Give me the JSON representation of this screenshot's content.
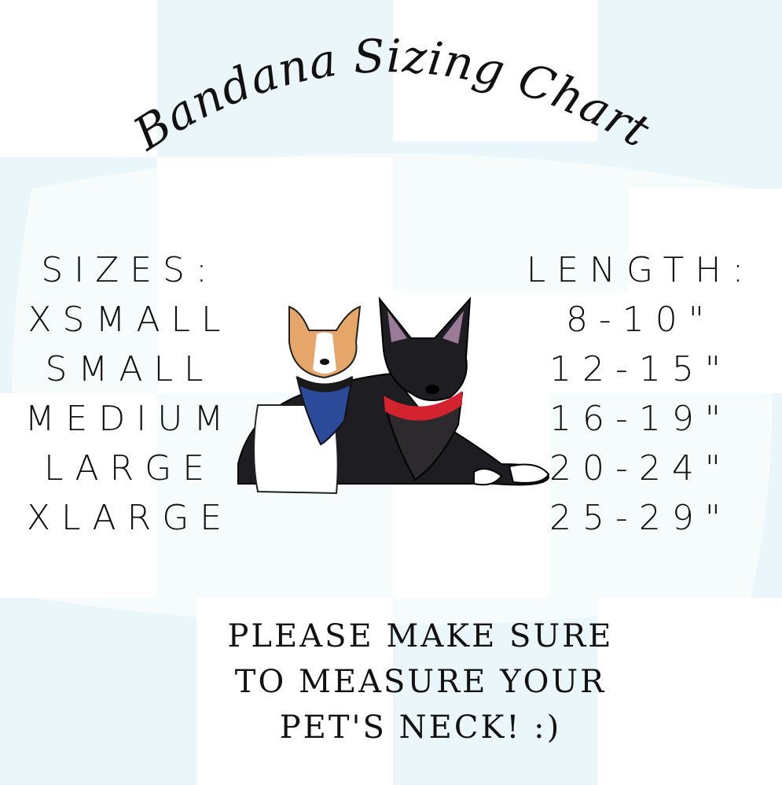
{
  "title": "Bandana  Sizing Chart",
  "sizes": {
    "header": "SIZES:",
    "items": [
      "XSMALL",
      "SMALL",
      "MEDIUM",
      "LARGE",
      "XLARGE"
    ]
  },
  "lengths": {
    "header": "LENGTH:",
    "items": [
      "8-10\"",
      "12-15\"",
      "16-19\"",
      "20-24\"",
      "25-29\""
    ]
  },
  "note": [
    "PLEASE MAKE SURE",
    "TO MEASURE YOUR",
    "PET'S NECK! :)"
  ],
  "colors": {
    "background_light": "#eaf6f9",
    "background_white": "#ffffff",
    "text": "#111111",
    "bandana_blue": "#2b4a9a",
    "bandana_red": "#d2232f"
  },
  "illustration": "two-dogs-wearing-bandanas"
}
